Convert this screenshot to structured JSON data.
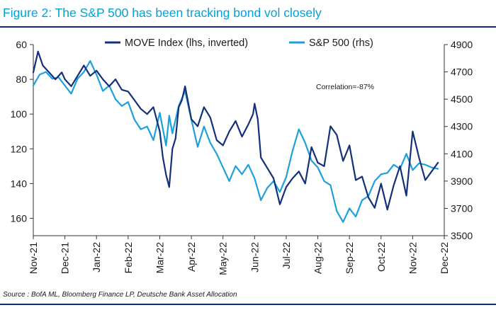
{
  "title": "Figure 2: The S&P 500 has been tracking bond vol closely",
  "source": "Source : BofA ML, Bloomberg Finance LP, Deutsche Bank Asset Allocation",
  "colors": {
    "title": "#00a3d9",
    "rule": "#0b2d78",
    "move": "#14307a",
    "spx": "#1ea0dc"
  },
  "chart_data": {
    "type": "line",
    "title": "Figure 2: The S&P 500 has been tracking bond vol closely",
    "annotation": "Correlation=-87%",
    "legend_position": "top-center",
    "grid": false,
    "x_tick_labels": [
      "Nov-21",
      "Dec-21",
      "Jan-22",
      "Feb-22",
      "Mar-22",
      "Apr-22",
      "May-22",
      "Jun-22",
      "Jul-22",
      "Aug-22",
      "Sep-22",
      "Oct-22",
      "Nov-22",
      "Dec-22"
    ],
    "x_range": [
      "Nov-21",
      "Dec-22"
    ],
    "left_axis": {
      "label": "",
      "inverted": true,
      "range": [
        60,
        170
      ],
      "ticks": [
        60,
        80,
        100,
        120,
        140,
        160
      ]
    },
    "right_axis": {
      "label": "",
      "range": [
        3500,
        4900
      ],
      "ticks": [
        3500,
        3700,
        3900,
        4100,
        4300,
        4500,
        4700,
        4900
      ]
    },
    "series": [
      {
        "name": "MOVE Index (lhs, inverted)",
        "axis": "left",
        "x": [
          0,
          0.15,
          0.3,
          0.5,
          0.7,
          0.9,
          1.0,
          1.2,
          1.4,
          1.6,
          1.8,
          2.0,
          2.2,
          2.4,
          2.6,
          2.8,
          3.0,
          3.2,
          3.4,
          3.6,
          3.8,
          4.0,
          4.1,
          4.2,
          4.3,
          4.4,
          4.5,
          4.6,
          4.7,
          4.8,
          5.0,
          5.2,
          5.4,
          5.6,
          5.8,
          6.0,
          6.2,
          6.4,
          6.6,
          6.8,
          6.95,
          7.0,
          7.1,
          7.2,
          7.4,
          7.6,
          7.8,
          8.0,
          8.2,
          8.4,
          8.6,
          8.8,
          9.0,
          9.2,
          9.4,
          9.6,
          9.8,
          10.0,
          10.2,
          10.4,
          10.6,
          10.8,
          11.0,
          11.2,
          11.4,
          11.6,
          11.8,
          12.0,
          12.2,
          12.4,
          12.6,
          12.8
        ],
        "values": [
          76,
          64,
          72,
          76,
          80,
          76,
          80,
          84,
          78,
          72,
          78,
          75,
          80,
          84,
          80,
          86,
          87,
          92,
          97,
          100,
          96,
          110,
          125,
          135,
          142,
          120,
          114,
          96,
          92,
          84,
          103,
          107,
          96,
          102,
          115,
          118,
          110,
          104,
          113,
          106,
          100,
          94,
          103,
          125,
          131,
          137,
          152,
          142,
          137,
          133,
          140,
          119,
          128,
          130,
          107,
          112,
          127,
          118,
          138,
          136,
          148,
          154,
          140,
          155,
          141,
          130,
          147,
          110,
          125,
          138,
          133,
          128
        ],
        "note": "weekly approximation of the plotted line"
      },
      {
        "name": "S&P 500 (rhs)",
        "axis": "right",
        "x": [
          0,
          0.2,
          0.4,
          0.6,
          0.8,
          1.0,
          1.2,
          1.4,
          1.6,
          1.8,
          2.0,
          2.2,
          2.4,
          2.6,
          2.8,
          3.0,
          3.2,
          3.4,
          3.6,
          3.8,
          4.0,
          4.2,
          4.3,
          4.4,
          4.6,
          4.8,
          5.0,
          5.2,
          5.4,
          5.6,
          5.8,
          6.0,
          6.2,
          6.4,
          6.6,
          6.8,
          7.0,
          7.2,
          7.4,
          7.6,
          7.8,
          8.0,
          8.2,
          8.4,
          8.6,
          8.8,
          9.0,
          9.2,
          9.4,
          9.6,
          9.8,
          10.0,
          10.2,
          10.4,
          10.6,
          10.8,
          11.0,
          11.2,
          11.4,
          11.6,
          11.8,
          12.0,
          12.2,
          12.4,
          12.6,
          12.8
        ],
        "values": [
          4600,
          4680,
          4700,
          4650,
          4660,
          4600,
          4540,
          4650,
          4700,
          4780,
          4680,
          4560,
          4600,
          4500,
          4450,
          4480,
          4350,
          4280,
          4300,
          4200,
          4400,
          4160,
          4380,
          4250,
          4450,
          4560,
          4350,
          4150,
          4300,
          4180,
          4100,
          4000,
          3900,
          4010,
          3950,
          4020,
          3920,
          3760,
          3850,
          3900,
          3820,
          3930,
          4120,
          4280,
          4180,
          4050,
          4000,
          3900,
          3870,
          3680,
          3600,
          3700,
          3640,
          3760,
          3790,
          3900,
          3950,
          3960,
          4020,
          3990,
          4100,
          3980,
          4030,
          4020,
          4000,
          3990
        ]
      }
    ]
  }
}
